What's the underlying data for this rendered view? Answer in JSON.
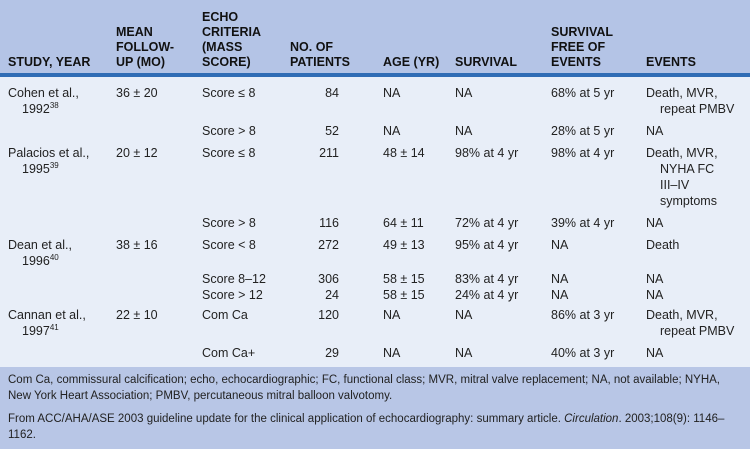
{
  "headers": [
    "STUDY, YEAR",
    "MEAN FOLLOW-UP (MO)",
    "ECHO CRITERIA (MASS SCORE)",
    "NO. OF PATIENTS",
    "AGE (YR)",
    "SURVIVAL",
    "SURVIVAL FREE OF EVENTS",
    "EVENTS"
  ],
  "rows": [
    {
      "study": "Cohen et al.,",
      "year": "1992",
      "ref": "38",
      "followup": "36 ± 20",
      "criteria": "Score ≤ 8",
      "patients": "84",
      "age": "NA",
      "survival": "NA",
      "free": "68% at 5 yr",
      "events": [
        "Death, MVR,",
        "repeat PMBV"
      ]
    },
    {
      "study": "",
      "year": "",
      "ref": "",
      "followup": "",
      "criteria": "Score > 8",
      "patients": "52",
      "age": "NA",
      "survival": "NA",
      "free": "28% at 5 yr",
      "events": [
        "NA"
      ]
    },
    {
      "study": "Palacios et al.,",
      "year": "1995",
      "ref": "39",
      "followup": "20 ± 12",
      "criteria": "Score ≤ 8",
      "patients": "211",
      "age": "48 ± 14",
      "survival": "98% at 4 yr",
      "free": "98% at 4 yr",
      "events": [
        "Death, MVR,",
        "NYHA FC",
        "III–IV",
        "symptoms"
      ]
    },
    {
      "study": "",
      "year": "",
      "ref": "",
      "followup": "",
      "criteria": "Score > 8",
      "patients": "116",
      "age": "64 ± 11",
      "survival": "72% at 4 yr",
      "free": "39% at 4 yr",
      "events": [
        "NA"
      ]
    },
    {
      "study": "Dean et al.,",
      "year": "1996",
      "ref": "40",
      "followup": "38 ± 16",
      "criteria": "Score < 8",
      "patients": "272",
      "age": "49 ± 13",
      "survival": "95% at 4 yr",
      "free": "NA",
      "events": [
        "Death"
      ]
    },
    {
      "study": "",
      "year": "",
      "ref": "",
      "followup": "",
      "criteria": "Score 8–12",
      "patients": "306",
      "age": "58 ± 15",
      "survival": "83% at 4 yr",
      "free": "NA",
      "events": [
        "NA"
      ]
    },
    {
      "study": "",
      "year": "",
      "ref": "",
      "followup": "",
      "criteria": "Score > 12",
      "patients": "24",
      "age": "58 ± 15",
      "survival": "24% at 4 yr",
      "free": "NA",
      "events": [
        "NA"
      ]
    },
    {
      "study": "Cannan et al.,",
      "year": "1997",
      "ref": "41",
      "followup": "22 ± 10",
      "criteria": "Com Ca",
      "patients": "120",
      "age": "NA",
      "survival": "NA",
      "free": "86% at 3 yr",
      "events": [
        "Death, MVR,",
        "repeat PMBV"
      ]
    },
    {
      "study": "",
      "year": "",
      "ref": "",
      "followup": "",
      "criteria": "Com Ca+",
      "patients": "29",
      "age": "NA",
      "survival": "NA",
      "free": "40% at 3 yr",
      "events": [
        "NA"
      ]
    }
  ],
  "footnote": "Com Ca, commissural calcification; echo, echocardiographic; FC, functional class; MVR, mitral valve replacement; NA, not available; NYHA, New York Heart Association; PMBV, percutaneous mitral balloon valvotomy.",
  "source": {
    "pre": "From ACC/AHA/ASE 2003 guideline update for the clinical application of echocardiography: summary article. ",
    "journal": "Circulation",
    "post": ". 2003;108(9): 1146–1162."
  }
}
